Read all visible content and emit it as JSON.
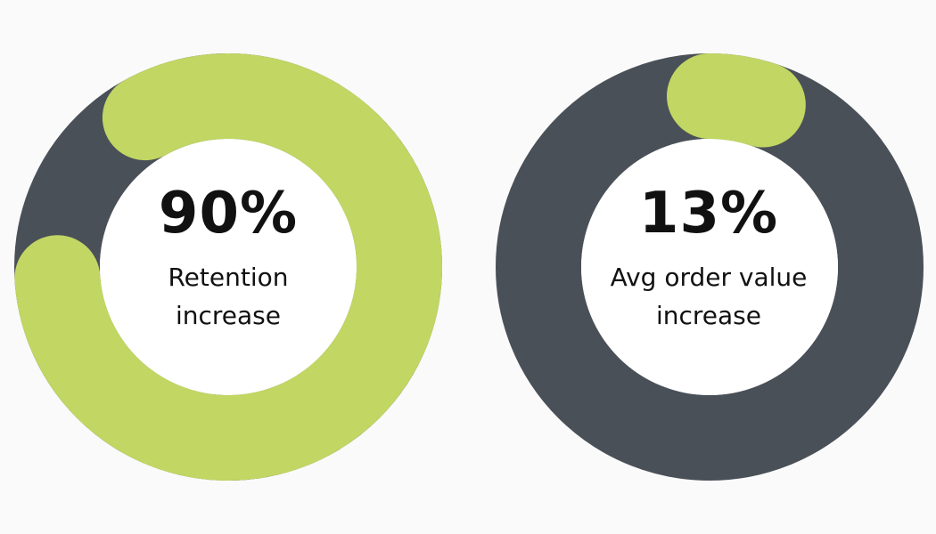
{
  "colors": {
    "background": "#fafafa",
    "progress": "#c1d663",
    "track": "#4a5058",
    "center": "#ffffff",
    "text": "#111111"
  },
  "chart_data": [
    {
      "type": "donut",
      "value": 90,
      "max": 100,
      "value_label": "90%",
      "label": "Retention increase"
    },
    {
      "type": "donut",
      "value": 13,
      "max": 100,
      "value_label": "13%",
      "label": "Avg order value increase"
    }
  ]
}
